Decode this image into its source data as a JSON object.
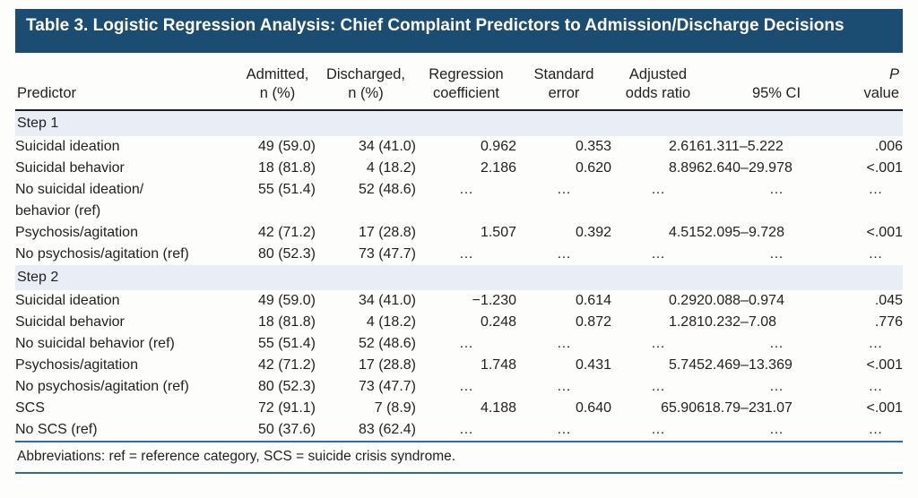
{
  "title": "Table 3. Logistic Regression Analysis: Chief Complaint Predictors to Admission/Discharge Decisions",
  "colors": {
    "title_bar_bg": "#1b4c72",
    "title_bar_text": "#ffffff",
    "section_band_bg": "#e9edf6",
    "header_rule": "#1d1d1b",
    "accent_rule_blue": "#2e6da4",
    "body_text": "#231f20"
  },
  "table": {
    "columns": [
      {
        "id": "predictor",
        "lines": [
          "Predictor"
        ]
      },
      {
        "id": "admitted",
        "lines": [
          "Admitted,",
          "n (%)"
        ]
      },
      {
        "id": "discharged",
        "lines": [
          "Discharged,",
          "n (%)"
        ]
      },
      {
        "id": "regression-coefficient",
        "lines": [
          "Regression",
          "coefficient"
        ]
      },
      {
        "id": "standard-error",
        "lines": [
          "Standard",
          "error"
        ]
      },
      {
        "id": "adjusted-odds-ratio",
        "lines": [
          "Adjusted",
          "odds ratio"
        ]
      },
      {
        "id": "ci",
        "lines": [
          "95% CI"
        ]
      },
      {
        "id": "p-value",
        "lines": [
          "P",
          "value"
        ],
        "italic_first_line": true
      }
    ],
    "sections": [
      {
        "label": "Step 1",
        "rows": [
          [
            "Suicidal ideation",
            "49 (59.0)",
            "34 (41.0)",
            "0.962",
            "0.353",
            "2.616",
            "1.311–5.222",
            ".006"
          ],
          [
            "Suicidal behavior",
            "18 (81.8)",
            "4 (18.2)",
            "2.186",
            "0.620",
            "8.896",
            "2.640–29.978",
            "<.001"
          ],
          [
            "No suicidal ideation/\nbehavior (ref)",
            "55 (51.4)",
            "52 (48.6)",
            "…",
            "…",
            "…",
            "…",
            "…"
          ],
          [
            "Psychosis/agitation",
            "42 (71.2)",
            "17 (28.8)",
            "1.507",
            "0.392",
            "4.515",
            "2.095–9.728",
            "<.001"
          ],
          [
            "No psychosis/agitation (ref)",
            "80 (52.3)",
            "73 (47.7)",
            "…",
            "…",
            "…",
            "…",
            "…"
          ]
        ]
      },
      {
        "label": "Step 2",
        "rows": [
          [
            "Suicidal ideation",
            "49 (59.0)",
            "34 (41.0)",
            "−1.230",
            "0.614",
            "0.292",
            "0.088–0.974",
            ".045"
          ],
          [
            "Suicidal behavior",
            "18 (81.8)",
            "4 (18.2)",
            "0.248",
            "0.872",
            "1.281",
            "0.232–7.08",
            ".776"
          ],
          [
            "No suicidal behavior (ref)",
            "55 (51.4)",
            "52 (48.6)",
            "…",
            "…",
            "…",
            "…",
            "…"
          ],
          [
            "Psychosis/agitation",
            "42 (71.2)",
            "17 (28.8)",
            "1.748",
            "0.431",
            "5.745",
            "2.469–13.369",
            "<.001"
          ],
          [
            "No psychosis/agitation (ref)",
            "80 (52.3)",
            "73 (47.7)",
            "…",
            "…",
            "…",
            "…",
            "…"
          ],
          [
            "SCS",
            "72 (91.1)",
            "7 (8.9)",
            "4.188",
            "0.640",
            "65.906",
            "18.79–231.07",
            "<.001"
          ],
          [
            "No SCS (ref)",
            "50 (37.6)",
            "83 (62.4)",
            "…",
            "…",
            "…",
            "…",
            "…"
          ]
        ]
      }
    ]
  },
  "footnote": "Abbreviations: ref = reference category, SCS = suicide crisis syndrome."
}
